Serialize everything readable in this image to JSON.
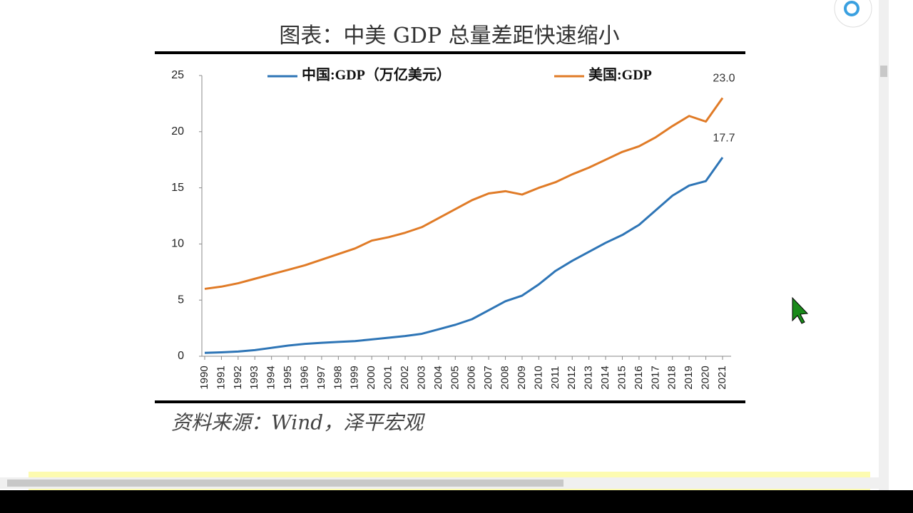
{
  "chart_data": {
    "type": "line",
    "title": "图表：中美 GDP 总量差距快速缩小",
    "source": "资料来源：Wind，泽平宏观",
    "categories": [
      "1990",
      "1991",
      "1992",
      "1993",
      "1994",
      "1995",
      "1996",
      "1997",
      "1998",
      "1999",
      "2000",
      "2001",
      "2002",
      "2003",
      "2004",
      "2005",
      "2006",
      "2007",
      "2008",
      "2009",
      "2010",
      "2011",
      "2012",
      "2013",
      "2014",
      "2015",
      "2016",
      "2017",
      "2018",
      "2019",
      "2020",
      "2021"
    ],
    "series": [
      {
        "name": "中国:GDP（万亿美元）",
        "color": "#2e75b6",
        "values": [
          0.3,
          0.35,
          0.42,
          0.55,
          0.75,
          0.95,
          1.1,
          1.2,
          1.28,
          1.35,
          1.5,
          1.65,
          1.8,
          2.0,
          2.4,
          2.8,
          3.3,
          4.1,
          4.9,
          5.4,
          6.4,
          7.6,
          8.5,
          9.3,
          10.1,
          10.8,
          11.7,
          13.0,
          14.3,
          15.2,
          15.6,
          17.7
        ],
        "value_labels": [
          null,
          null,
          null,
          null,
          null,
          null,
          null,
          null,
          null,
          null,
          null,
          null,
          null,
          null,
          null,
          null,
          null,
          null,
          null,
          null,
          null,
          null,
          null,
          null,
          null,
          null,
          null,
          null,
          null,
          null,
          null,
          "17.7"
        ]
      },
      {
        "name": "美国:GDP",
        "color": "#e07b27",
        "values": [
          6.0,
          6.2,
          6.5,
          6.9,
          7.3,
          7.7,
          8.1,
          8.6,
          9.1,
          9.6,
          10.3,
          10.6,
          11.0,
          11.5,
          12.3,
          13.1,
          13.9,
          14.5,
          14.7,
          14.4,
          15.0,
          15.5,
          16.2,
          16.8,
          17.5,
          18.2,
          18.7,
          19.5,
          20.5,
          21.4,
          20.9,
          23.0
        ],
        "value_labels": [
          null,
          null,
          null,
          null,
          null,
          null,
          null,
          null,
          null,
          null,
          null,
          null,
          null,
          null,
          null,
          null,
          null,
          null,
          null,
          null,
          null,
          null,
          null,
          null,
          null,
          null,
          null,
          null,
          null,
          null,
          null,
          "23.0"
        ]
      }
    ],
    "ylim": [
      0,
      25
    ],
    "yticks": [
      0,
      5,
      10,
      15,
      20,
      25
    ],
    "grid": false
  }
}
